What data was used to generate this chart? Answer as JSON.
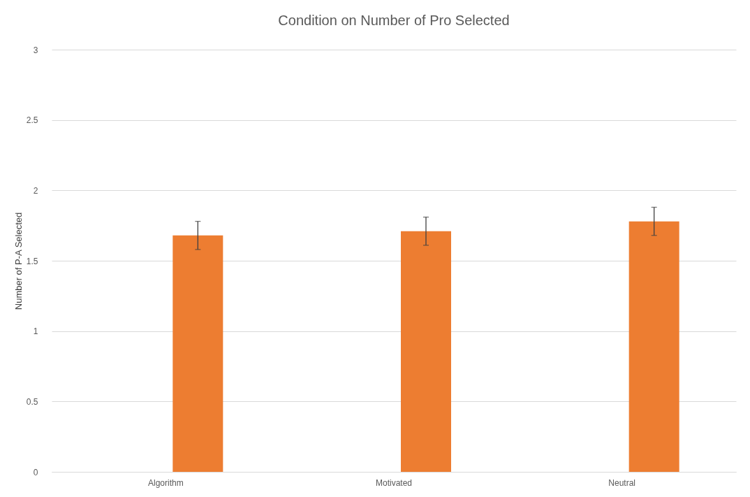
{
  "chart_data": {
    "type": "bar",
    "title": "Condition on Number of Pro Selected",
    "ylabel": "Number of P-A Selected",
    "categories": [
      "Algorithm",
      "Motivated",
      "Neutral"
    ],
    "values": [
      1.68,
      1.71,
      1.78
    ],
    "errors": [
      0.1,
      0.1,
      0.1
    ],
    "color": "#ed7d31",
    "ylim": [
      0,
      3
    ],
    "yticks": [
      0,
      0.5,
      1,
      1.5,
      2,
      2.5,
      3
    ],
    "grid": "y"
  }
}
